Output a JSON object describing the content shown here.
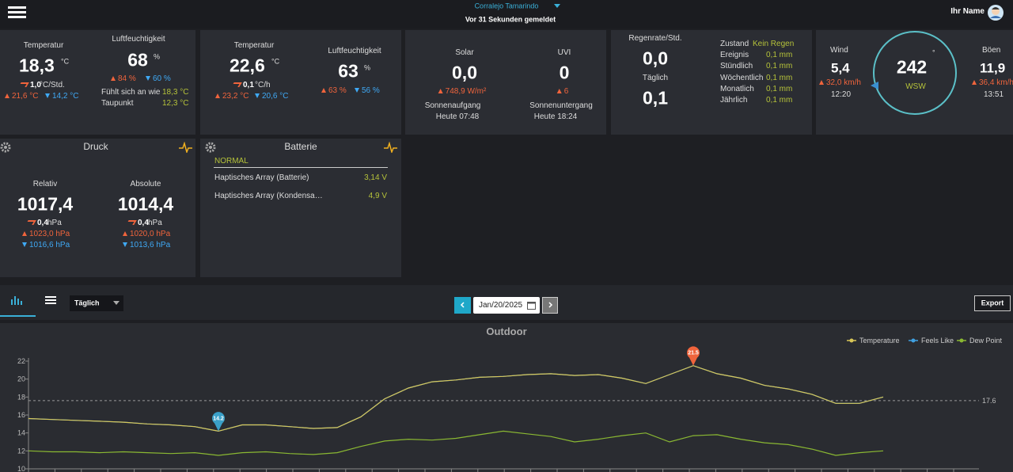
{
  "header": {
    "location": "Corralejo Tamarindo",
    "status": "Vor 31 Sekunden gemeldet",
    "user": "Ihr Name"
  },
  "outdoor": {
    "temp_label": "Temperatur",
    "temp": "18,3",
    "temp_unit": "°C",
    "trend": "1,0",
    "trend_unit": "°C/Std.",
    "max": "21,6 °C",
    "min": "14,2 °C",
    "hum_label": "Luftfeuchtigkeit",
    "hum": "68",
    "hum_unit": "%",
    "hum_max": "84 %",
    "hum_min": "60 %",
    "feels_label": "Fühlt sich an wie",
    "feels": "18,3 °C",
    "dew_label": "Taupunkt",
    "dew": "12,3 °C"
  },
  "indoor": {
    "temp_label": "Temperatur",
    "temp": "22,6",
    "temp_unit": "°C",
    "trend": "0,1",
    "trend_unit": "°C/h",
    "max": "23,2 °C",
    "min": "20,6 °C",
    "hum_label": "Luftfeuchtigkeit",
    "hum": "63",
    "hum_unit": "%",
    "hum_max": "63 %",
    "hum_min": "56 %"
  },
  "solar": {
    "solar_label": "Solar",
    "solar": "0,0",
    "solar_max": "748,9 W/m²",
    "uvi_label": "UVI",
    "uvi": "0",
    "uvi_max": "6",
    "sunrise_label": "Sonnenaufgang",
    "sunrise": "Heute 07:48",
    "sunset_label": "Sonnenuntergang",
    "sunset": "Heute 18:24"
  },
  "rain": {
    "rate_label": "Regenrate/Std.",
    "rate": "0,0",
    "daily_label": "Täglich",
    "daily": "0,1",
    "rows": [
      [
        "Zustand",
        "Kein Regen"
      ],
      [
        "Ereignis",
        "0,1 mm"
      ],
      [
        "Stündlich",
        "0,1 mm"
      ],
      [
        "Wöchentlich",
        "0,1 mm"
      ],
      [
        "Monatlich",
        "0,1 mm"
      ],
      [
        "Jährlich",
        "0,1 mm"
      ]
    ]
  },
  "wind": {
    "wind_label": "Wind",
    "wind": "5,4",
    "wind_max": "32,0 km/h",
    "wind_time": "12:20",
    "direction": "242",
    "deg": "°",
    "dir_name": "WSW",
    "gust_label": "Böen",
    "gust": "11,9",
    "gust_max": "36,4 km/h",
    "gust_time": "13:51"
  },
  "pressure": {
    "title": "Druck",
    "rel_label": "Relativ",
    "rel": "1017,4",
    "rel_trend": "0,4",
    "rel_unit": "hPa",
    "rel_max": "1023,0 hPa",
    "rel_min": "1016,6 hPa",
    "abs_label": "Absolute",
    "abs": "1014,4",
    "abs_trend": "0,4",
    "abs_unit": "hPa",
    "abs_max": "1020,0 hPa",
    "abs_min": "1013,6 hPa"
  },
  "battery": {
    "title": "Batterie",
    "status": "NORMAL",
    "rows": [
      [
        "Haptisches Array (Batterie)",
        "3,14 V"
      ],
      [
        "Haptisches Array (Kondensa…",
        "4,9 V"
      ]
    ]
  },
  "toolbar": {
    "period": "Täglich",
    "date": "Jan/20/2025",
    "export": "Export"
  },
  "chart_data": {
    "type": "line",
    "title": "Outdoor",
    "ylim": [
      10,
      22
    ],
    "yticks": [
      10,
      12,
      14,
      16,
      18,
      20,
      22
    ],
    "reference": {
      "value": 17.6
    },
    "markers": [
      {
        "value": 14.2,
        "color": "#3aa0c8"
      },
      {
        "value": 21.5,
        "color": "#f0643c"
      }
    ],
    "series": [
      {
        "name": "Temperature",
        "color": "#d8c657",
        "values": [
          15.6,
          15.5,
          15.4,
          15.3,
          15.2,
          15.0,
          14.9,
          14.7,
          14.2,
          14.9,
          14.9,
          14.7,
          14.5,
          14.6,
          15.8,
          17.8,
          19.0,
          19.7,
          19.9,
          20.2,
          20.3,
          20.5,
          20.6,
          20.4,
          20.5,
          20.1,
          19.5,
          20.5,
          21.5,
          20.6,
          20.1,
          19.3,
          18.9,
          18.3,
          17.3,
          17.3,
          18.0
        ]
      },
      {
        "name": "Feels Like",
        "color": "#3fa0e0",
        "values": [
          15.6,
          15.5,
          15.4,
          15.3,
          15.2,
          15.0,
          14.9,
          14.7,
          14.2,
          14.9,
          14.9,
          14.7,
          14.5,
          14.6,
          15.8,
          17.8,
          19.0,
          19.7,
          19.9,
          20.2,
          20.3,
          20.5,
          20.6,
          20.4,
          20.5,
          20.1,
          19.5,
          20.5,
          21.5,
          20.6,
          20.1,
          19.3,
          18.9,
          18.3,
          17.3,
          17.3,
          18.0
        ]
      },
      {
        "name": "Dew Point",
        "color": "#8ab832",
        "values": [
          12.0,
          11.9,
          11.9,
          11.8,
          11.9,
          11.8,
          11.7,
          11.8,
          11.5,
          11.8,
          11.9,
          11.7,
          11.6,
          11.8,
          12.5,
          13.1,
          13.3,
          13.2,
          13.4,
          13.8,
          14.2,
          13.9,
          13.6,
          13.0,
          13.3,
          13.7,
          14.0,
          13.0,
          13.7,
          13.8,
          13.3,
          12.9,
          12.7,
          12.2,
          11.5,
          11.8,
          12.0
        ]
      }
    ]
  }
}
